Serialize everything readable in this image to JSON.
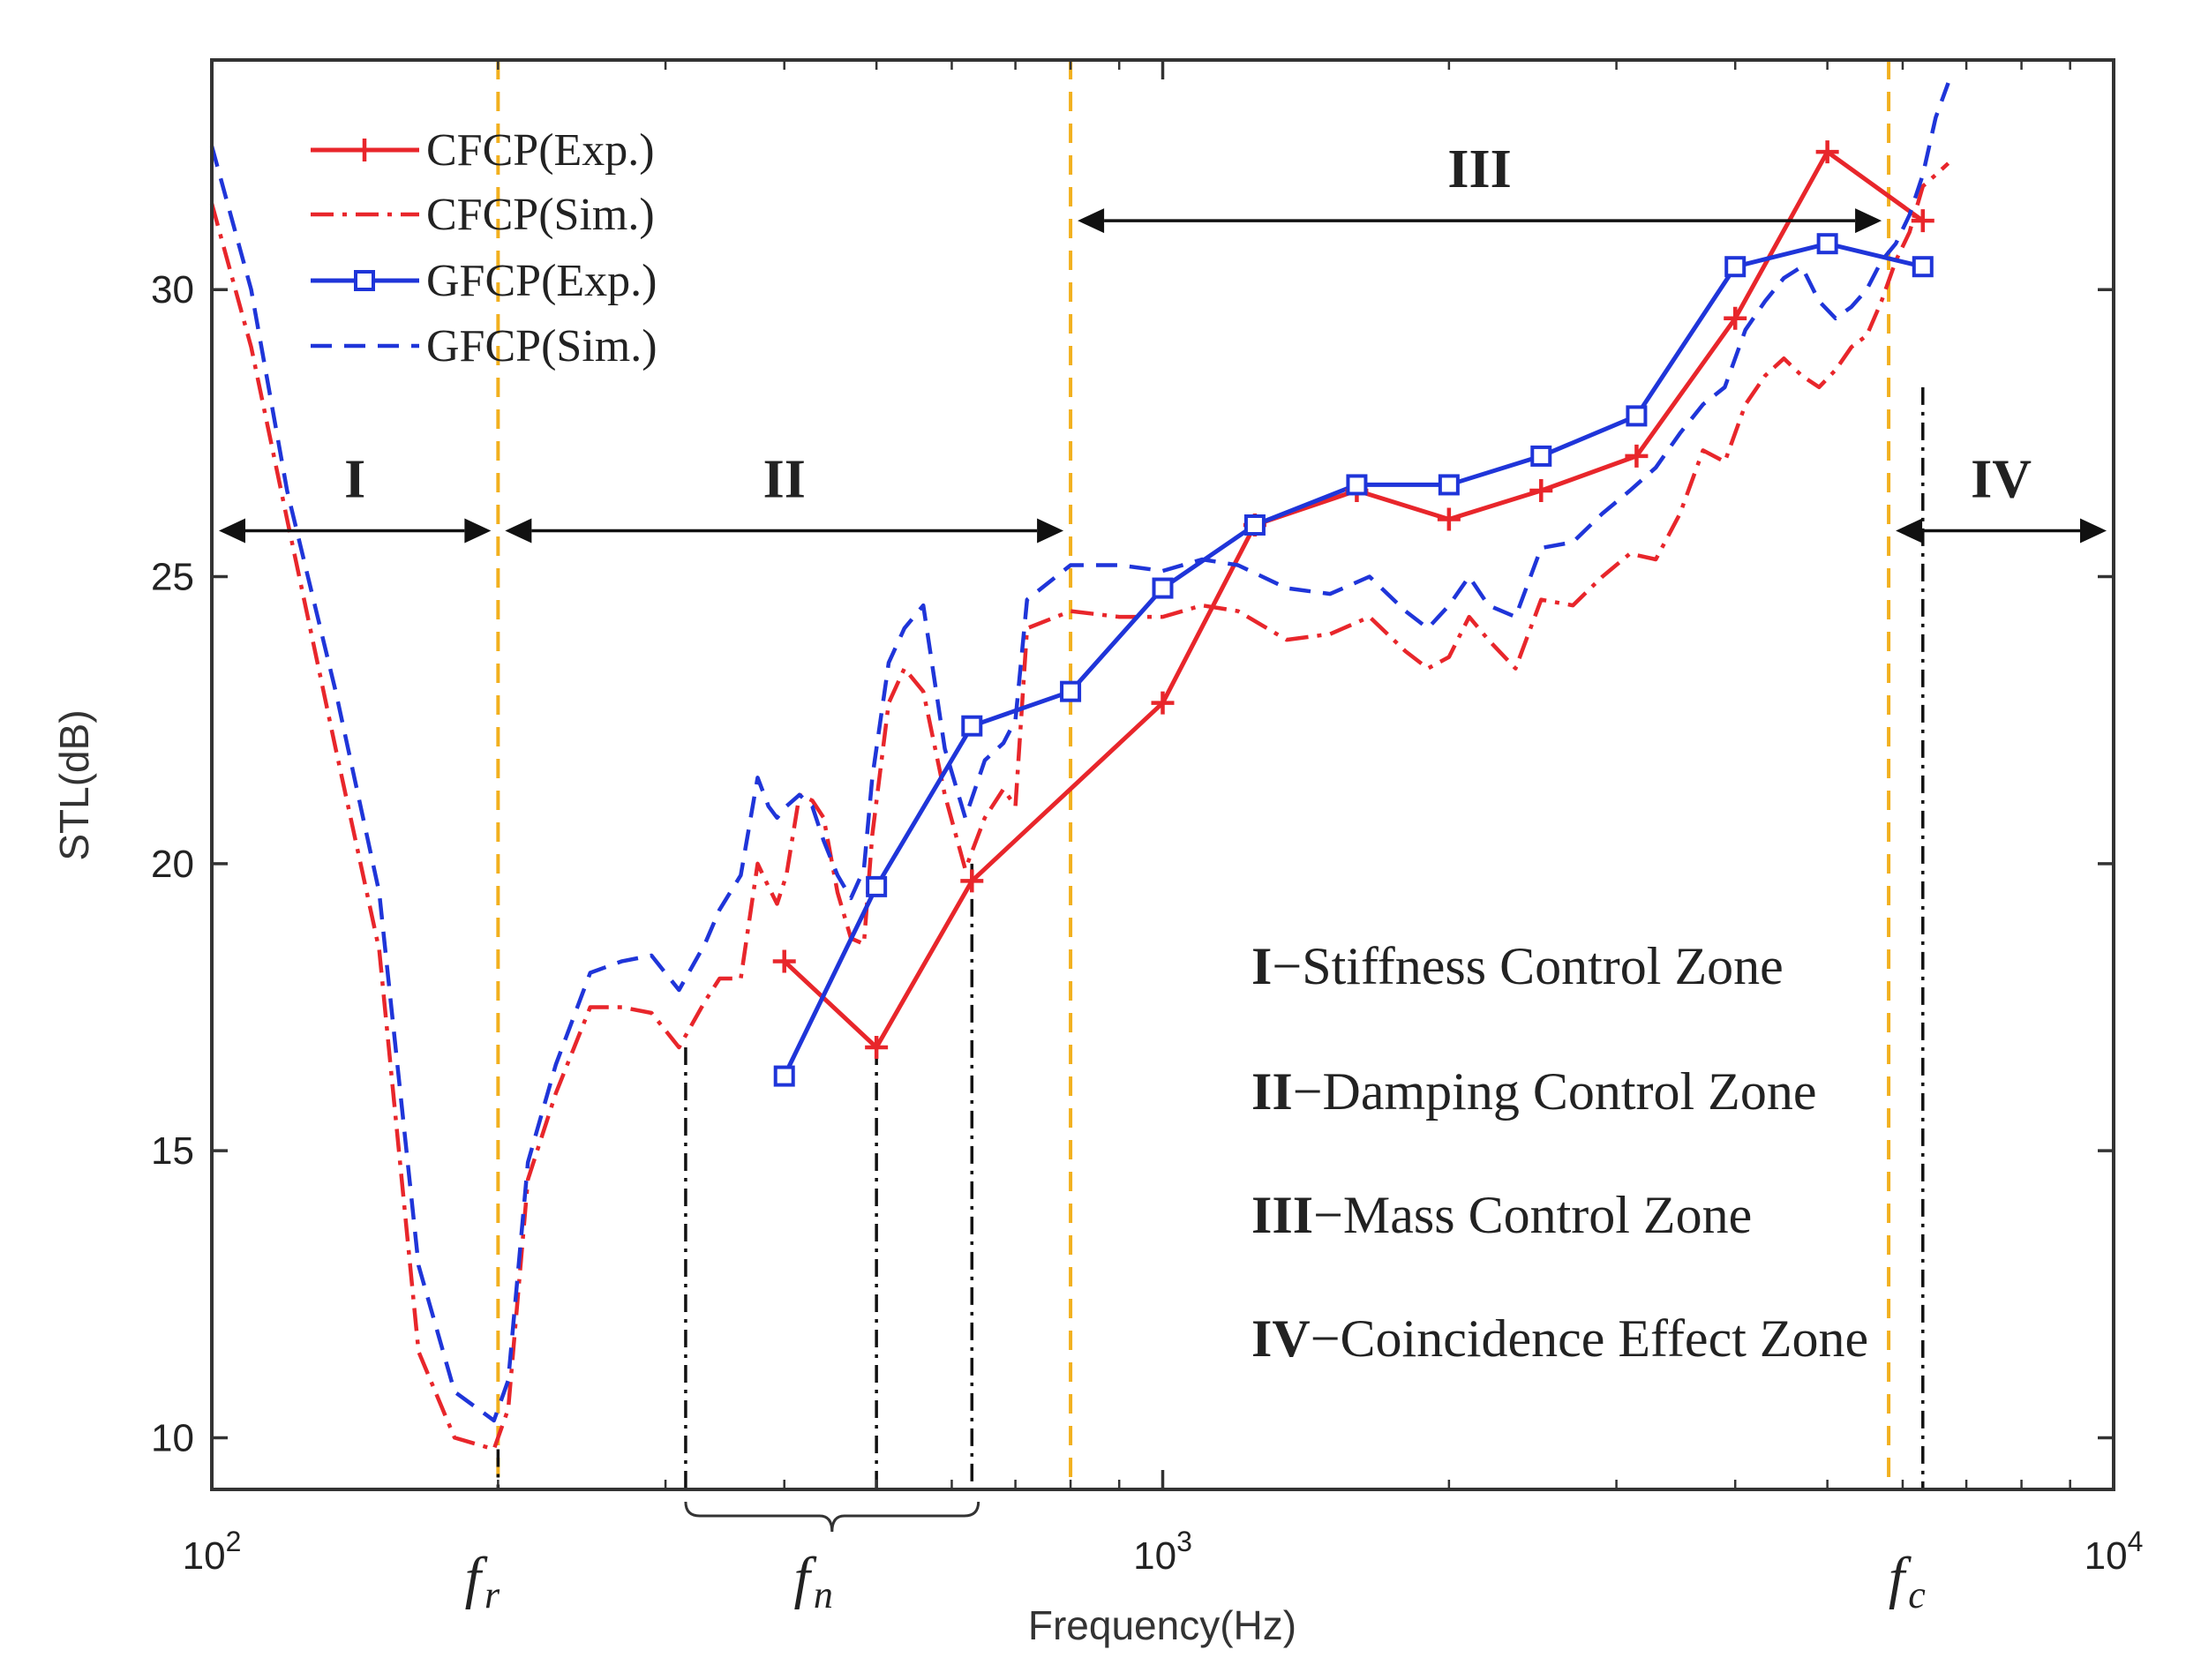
{
  "chart_data": {
    "type": "line",
    "xscale": "log",
    "xlim": [
      100,
      10000
    ],
    "ylim": [
      9.1,
      34
    ],
    "xlabel": "Frequency(Hz)",
    "ylabel": "STL(dB)",
    "x_ticks": [
      {
        "value": 100,
        "base": "10",
        "exp": "2"
      },
      {
        "value": 1000,
        "base": "10",
        "exp": "3"
      },
      {
        "value": 10000,
        "base": "10",
        "exp": "4"
      }
    ],
    "y_ticks": [
      10,
      15,
      20,
      25,
      30
    ],
    "series": [
      {
        "name": "CFCP(Exp.)",
        "color": "#e8262b",
        "style": "solid",
        "marker": "plus",
        "x": [
          400,
          500,
          630,
          1000,
          1250,
          1600,
          2000,
          2500,
          3150,
          4000,
          5000,
          6300
        ],
        "y": [
          18.3,
          16.8,
          19.7,
          22.8,
          25.9,
          26.5,
          26.0,
          26.5,
          27.1,
          29.5,
          32.4,
          31.2
        ]
      },
      {
        "name": "CFCP(Sim.)",
        "color": "#e8262b",
        "style": "dashdot",
        "marker": "none",
        "x": [
          100,
          110,
          120,
          135,
          150,
          165,
          180,
          198,
          205,
          215,
          230,
          250,
          270,
          290,
          310,
          330,
          342,
          360,
          375,
          385,
          393,
          402,
          415,
          428,
          440,
          455,
          470,
          485,
          495,
          515,
          535,
          560,
          590,
          620,
          650,
          680,
          700,
          720,
          800,
          900,
          1000,
          1100,
          1200,
          1350,
          1500,
          1650,
          1800,
          1900,
          2000,
          2100,
          2200,
          2350,
          2500,
          2700,
          2900,
          3100,
          3300,
          3500,
          3700,
          3900,
          4100,
          4300,
          4500,
          4700,
          4900,
          5100,
          5300,
          5500,
          5700,
          5900,
          6100,
          6300,
          6500,
          6700
        ],
        "y": [
          31.5,
          29.0,
          26.0,
          22.0,
          18.5,
          11.5,
          10.0,
          9.8,
          10.5,
          14.5,
          16.0,
          17.5,
          17.5,
          17.4,
          16.8,
          17.6,
          18.0,
          18.0,
          20.0,
          19.6,
          19.3,
          19.8,
          21.2,
          21.1,
          20.8,
          19.5,
          18.7,
          18.6,
          20.5,
          22.8,
          23.4,
          23.0,
          21.2,
          19.9,
          20.8,
          21.3,
          21.0,
          24.1,
          24.4,
          24.3,
          24.3,
          24.5,
          24.4,
          23.9,
          24.0,
          24.3,
          23.7,
          23.4,
          23.6,
          24.3,
          23.9,
          23.4,
          24.6,
          24.5,
          25.0,
          25.4,
          25.3,
          26.1,
          27.2,
          27.0,
          28.0,
          28.5,
          28.8,
          28.5,
          28.3,
          28.6,
          29.0,
          29.2,
          29.8,
          30.5,
          31.0,
          31.8,
          32.0,
          32.2
        ]
      },
      {
        "name": "GFCP(Exp.)",
        "color": "#1f35d9",
        "style": "solid",
        "marker": "square",
        "x": [
          400,
          500,
          630,
          800,
          1000,
          1250,
          1600,
          2000,
          2500,
          3150,
          4000,
          5000,
          6300
        ],
        "y": [
          16.3,
          19.6,
          22.4,
          23.0,
          24.8,
          25.9,
          26.6,
          26.6,
          27.1,
          27.8,
          30.4,
          30.8,
          30.4
        ]
      },
      {
        "name": "GFCP(Sim.)",
        "color": "#1f35d9",
        "style": "dash",
        "marker": "none",
        "x": [
          100,
          110,
          120,
          135,
          150,
          165,
          180,
          198,
          205,
          215,
          230,
          250,
          270,
          290,
          310,
          330,
          342,
          360,
          375,
          385,
          393,
          402,
          415,
          428,
          440,
          455,
          470,
          485,
          495,
          515,
          535,
          560,
          590,
          620,
          650,
          680,
          700,
          720,
          800,
          900,
          1000,
          1100,
          1200,
          1350,
          1500,
          1650,
          1800,
          1900,
          2000,
          2100,
          2200,
          2350,
          2500,
          2700,
          2900,
          3100,
          3300,
          3500,
          3700,
          3900,
          4100,
          4300,
          4500,
          4700,
          4900,
          5100,
          5300,
          5500,
          5700,
          5900,
          6100,
          6300,
          6500,
          6700
        ],
        "y": [
          32.5,
          30.0,
          26.5,
          23.0,
          19.5,
          13.0,
          10.8,
          10.3,
          11.0,
          14.8,
          16.5,
          18.1,
          18.3,
          18.4,
          17.8,
          18.6,
          19.2,
          19.8,
          21.5,
          21.0,
          20.8,
          21.0,
          21.2,
          21.0,
          20.4,
          19.8,
          19.4,
          19.9,
          21.5,
          23.5,
          24.1,
          24.5,
          22.0,
          20.8,
          21.8,
          22.1,
          22.5,
          24.6,
          25.2,
          25.2,
          25.1,
          25.3,
          25.2,
          24.8,
          24.7,
          25.0,
          24.4,
          24.1,
          24.5,
          25.0,
          24.5,
          24.3,
          25.5,
          25.6,
          26.1,
          26.5,
          26.9,
          27.5,
          28.0,
          28.3,
          29.3,
          29.8,
          30.2,
          30.4,
          29.8,
          29.5,
          29.7,
          30.0,
          30.5,
          30.8,
          31.3,
          32.0,
          33.0,
          33.6
        ]
      }
    ],
    "zone_lines_hz": [
      200,
      800,
      5800
    ],
    "zones": [
      {
        "label": "I",
        "x_from": 100,
        "x_to": 200,
        "arrow_y": 25.8
      },
      {
        "label": "II",
        "x_from": 200,
        "x_to": 800,
        "arrow_y": 25.8
      },
      {
        "label": "III",
        "x_from": 800,
        "x_to": 5800,
        "arrow_y": 31.2
      },
      {
        "label": "IV",
        "x_from": 5800,
        "x_to": 10000,
        "arrow_y": 25.8
      }
    ],
    "resonance_lines": [
      {
        "x": 200,
        "y_top": 9.8
      },
      {
        "x": 315,
        "y_top": 16.8
      },
      {
        "x": 500,
        "y_top": 16.8
      },
      {
        "x": 630,
        "y_top": 20.0
      },
      {
        "x": 6300,
        "y_top": 28.3
      }
    ],
    "freq_marks": [
      {
        "x": 200,
        "main": "f",
        "sub": "r"
      },
      {
        "x": 446,
        "main": "f",
        "sub": "n"
      },
      {
        "x": 6300,
        "main": "f",
        "sub": "c"
      }
    ],
    "fn_bracket": {
      "x_from": 315,
      "x_to": 640
    },
    "notes": [
      {
        "num": "I",
        "text": "−Stiffness Control Zone"
      },
      {
        "num": "II",
        "text": "−Damping Control Zone"
      },
      {
        "num": "III",
        "text": "−Mass Control Zone"
      },
      {
        "num": "IV",
        "text": "−Coincidence Effect Zone"
      }
    ],
    "legend_position": "top-left"
  }
}
